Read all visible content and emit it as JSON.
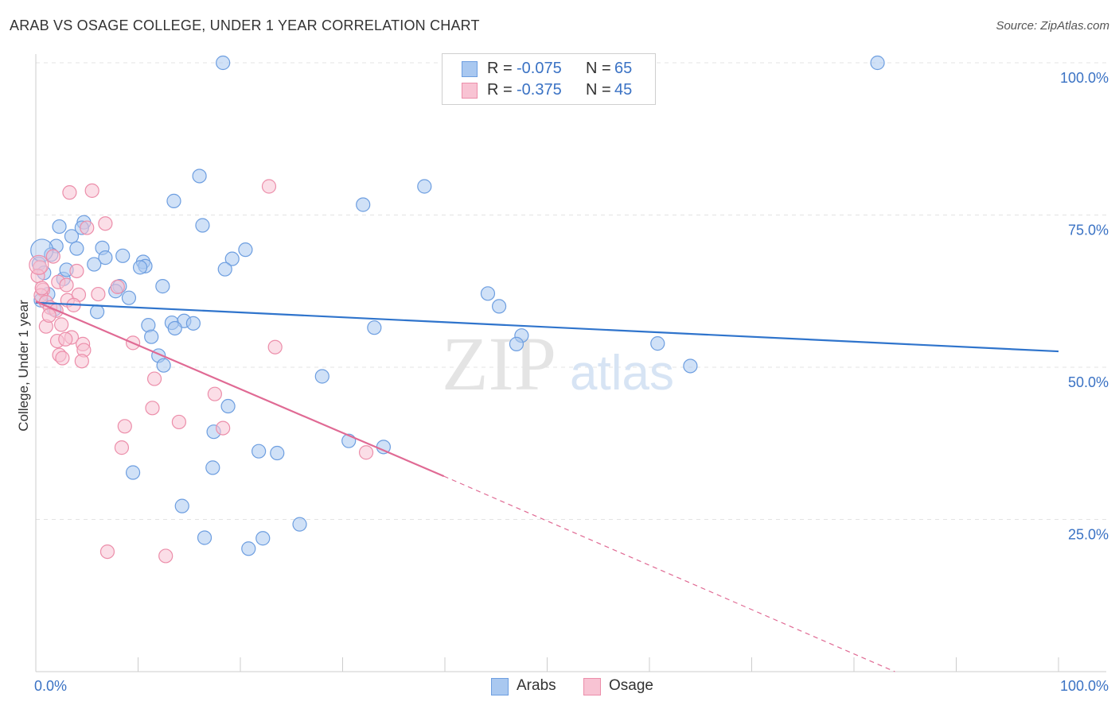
{
  "title": "ARAB VS OSAGE COLLEGE, UNDER 1 YEAR CORRELATION CHART",
  "source": "Source: ZipAtlas.com",
  "watermark": {
    "zip": "ZIP",
    "atlas": "atlas"
  },
  "legend": {
    "r_label": "R =",
    "n_label": "N =",
    "rows": [
      {
        "series": "Arabs",
        "r": "-0.075",
        "n": "65",
        "color": "#a9c8f0",
        "border": "#6d9ee0"
      },
      {
        "series": "Osage",
        "r": "-0.375",
        "n": "45",
        "color": "#f8c3d3",
        "border": "#ec8eaa"
      }
    ]
  },
  "bottom_legend": [
    {
      "label": "Arabs",
      "color": "#a9c8f0",
      "border": "#6d9ee0"
    },
    {
      "label": "Osage",
      "color": "#f8c3d3",
      "border": "#ec8eaa"
    }
  ],
  "chart_data": {
    "type": "scatter",
    "title": "ARAB VS OSAGE COLLEGE, UNDER 1 YEAR CORRELATION CHART",
    "ylabel": "College, Under 1 year",
    "xlabel": "",
    "xlim": [
      0,
      100
    ],
    "ylim": [
      0,
      100
    ],
    "x_tick_labels": [
      "0.0%",
      "100.0%"
    ],
    "y_tick_labels": [
      "25.0%",
      "50.0%",
      "75.0%",
      "100.0%"
    ],
    "y_ticks": [
      25,
      50,
      75,
      100
    ],
    "grid": true,
    "legend_position": "top-center",
    "colors": {
      "arabs_fill": "#a9c8f0",
      "arabs_edge": "#6d9ee0",
      "arabs_line": "#2f74cc",
      "osage_fill": "#f8c3d3",
      "osage_edge": "#ec8eaa",
      "osage_line": "#e06a94"
    },
    "series": [
      {
        "name": "Arabs",
        "trend": {
          "x": [
            0,
            100
          ],
          "y": [
            60.6,
            52.6
          ]
        },
        "points": [
          [
            18.3,
            100
          ],
          [
            82.3,
            100
          ],
          [
            16.0,
            81.4
          ],
          [
            38.0,
            79.7
          ],
          [
            13.5,
            77.3
          ],
          [
            32.0,
            76.7
          ],
          [
            2.3,
            73.1
          ],
          [
            4.7,
            73.8
          ],
          [
            16.3,
            73.3
          ],
          [
            4.5,
            72.9
          ],
          [
            3.5,
            71.5
          ],
          [
            2.0,
            69.9
          ],
          [
            6.5,
            69.6
          ],
          [
            4.0,
            69.5
          ],
          [
            20.5,
            69.3
          ],
          [
            1.5,
            68.5
          ],
          [
            8.5,
            68.3
          ],
          [
            6.8,
            68.0
          ],
          [
            19.2,
            67.8
          ],
          [
            5.7,
            66.9
          ],
          [
            10.5,
            67.3
          ],
          [
            10.7,
            66.6
          ],
          [
            10.2,
            66.4
          ],
          [
            18.5,
            66.1
          ],
          [
            8.2,
            63.3
          ],
          [
            12.4,
            63.3
          ],
          [
            7.8,
            62.5
          ],
          [
            9.1,
            61.4
          ],
          [
            44.2,
            62.1
          ],
          [
            45.3,
            60.0
          ],
          [
            6.0,
            59.1
          ],
          [
            11.0,
            56.9
          ],
          [
            13.3,
            57.3
          ],
          [
            14.5,
            57.6
          ],
          [
            15.4,
            57.2
          ],
          [
            13.6,
            56.4
          ],
          [
            33.1,
            56.5
          ],
          [
            11.3,
            55.0
          ],
          [
            47.5,
            55.2
          ],
          [
            47.0,
            53.8
          ],
          [
            60.8,
            53.9
          ],
          [
            12.0,
            51.9
          ],
          [
            12.5,
            50.3
          ],
          [
            64.0,
            50.2
          ],
          [
            28.0,
            48.5
          ],
          [
            18.8,
            43.6
          ],
          [
            17.4,
            39.4
          ],
          [
            30.6,
            37.9
          ],
          [
            34.0,
            36.9
          ],
          [
            21.8,
            36.2
          ],
          [
            23.6,
            35.9
          ],
          [
            17.3,
            33.5
          ],
          [
            9.5,
            32.7
          ],
          [
            14.3,
            27.2
          ],
          [
            25.8,
            24.2
          ],
          [
            16.5,
            22.0
          ],
          [
            22.2,
            21.9
          ],
          [
            20.8,
            20.2
          ],
          [
            0.3,
            67.0
          ],
          [
            0.8,
            65.5
          ],
          [
            1.2,
            62.0
          ],
          [
            0.5,
            61.0
          ],
          [
            1.8,
            59.5
          ],
          [
            2.7,
            64.5
          ],
          [
            3.0,
            66.0
          ]
        ]
      },
      {
        "name": "Osage",
        "trend": {
          "x": [
            0,
            39.9
          ],
          "y": [
            60.8,
            32.1
          ]
        },
        "trend_dashed": {
          "x": [
            39.9,
            84.0
          ],
          "y": [
            32.1,
            0
          ]
        },
        "points": [
          [
            3.3,
            78.7
          ],
          [
            5.5,
            79.0
          ],
          [
            22.8,
            79.7
          ],
          [
            6.8,
            73.6
          ],
          [
            5.0,
            72.9
          ],
          [
            1.7,
            68.2
          ],
          [
            0.4,
            66.4
          ],
          [
            4.0,
            65.8
          ],
          [
            0.7,
            62.7
          ],
          [
            0.5,
            61.8
          ],
          [
            2.2,
            64.0
          ],
          [
            3.0,
            63.5
          ],
          [
            8.0,
            63.2
          ],
          [
            1.0,
            60.7
          ],
          [
            3.1,
            61.0
          ],
          [
            4.2,
            61.9
          ],
          [
            1.4,
            59.8
          ],
          [
            2.0,
            59.3
          ],
          [
            1.0,
            56.7
          ],
          [
            3.5,
            54.9
          ],
          [
            2.1,
            54.3
          ],
          [
            2.9,
            54.6
          ],
          [
            4.6,
            53.8
          ],
          [
            9.5,
            54.0
          ],
          [
            4.7,
            52.8
          ],
          [
            2.3,
            52.0
          ],
          [
            2.6,
            51.5
          ],
          [
            4.5,
            51.0
          ],
          [
            23.4,
            53.3
          ],
          [
            11.6,
            48.1
          ],
          [
            17.5,
            45.6
          ],
          [
            11.4,
            43.3
          ],
          [
            14.0,
            41.0
          ],
          [
            8.7,
            40.3
          ],
          [
            18.3,
            40.0
          ],
          [
            8.4,
            36.8
          ],
          [
            32.3,
            36.0
          ],
          [
            7.0,
            19.7
          ],
          [
            12.7,
            19.0
          ],
          [
            0.2,
            65.0
          ],
          [
            0.6,
            63.0
          ],
          [
            1.3,
            58.5
          ],
          [
            2.5,
            57.0
          ],
          [
            3.7,
            60.2
          ],
          [
            6.1,
            62.0
          ]
        ]
      }
    ]
  }
}
